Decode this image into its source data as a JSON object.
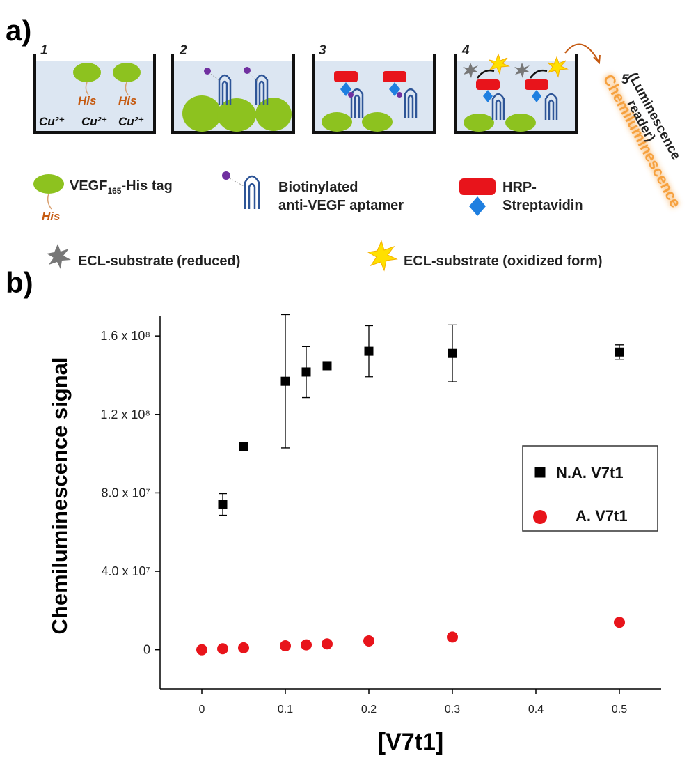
{
  "panel_a": {
    "label": "a)",
    "steps": [
      "1",
      "2",
      "3",
      "4",
      "5"
    ],
    "well_1": {
      "his": [
        "His",
        "His"
      ],
      "copper": [
        "Cu²⁺",
        "Cu²⁺",
        "Cu²⁺"
      ]
    },
    "reader": [
      "Chemiluminescence",
      "(Luminescence",
      "reader)"
    ],
    "legend": {
      "vegf": [
        "VEGF",
        "165",
        "-His tag"
      ],
      "vegf_tag": "His",
      "aptamer": [
        "Biotinylated",
        "anti-VEGF aptamer"
      ],
      "hrp": [
        "HRP-",
        "Streptavidin"
      ],
      "ecl_reduced": "ECL-substrate (reduced)",
      "ecl_oxidized": "ECL-substrate (oxidized form)"
    }
  },
  "panel_b_label": "b)",
  "chart_data": {
    "type": "scatter",
    "x_label": "[V7t1]",
    "y_label": "Chemiluminescence signal",
    "x": [
      0,
      0.025,
      0.05,
      0.1,
      0.125,
      0.15,
      0.2,
      0.3,
      0.5
    ],
    "series": [
      {
        "name": "N.A. V7t1",
        "color": "#000000",
        "marker": "square",
        "values": [
          null,
          74100000,
          103600000,
          136900000,
          141600000,
          144800000,
          152200000,
          151100000,
          151800000
        ],
        "errors": [
          null,
          5500000,
          null,
          34000000,
          13000000,
          null,
          13000000,
          14500000,
          3700000
        ]
      },
      {
        "name": "A. V7t1",
        "color": "#e8141b",
        "marker": "circle",
        "values": [
          0,
          500000,
          1000000,
          2000000,
          2500000,
          3000000,
          4500000,
          6500000,
          14000000
        ]
      }
    ],
    "xlim": [
      -0.05,
      0.55
    ],
    "ylim": [
      -20000000,
      170000000
    ],
    "xticks": [
      0,
      0.1,
      0.2,
      0.3,
      0.4,
      0.5
    ],
    "yticks": [
      0,
      {
        "value": 40000000,
        "label": "4.0 x 10⁷"
      },
      {
        "value": 80000000,
        "label": "8.0 x 10⁷"
      },
      {
        "value": 120000000,
        "label": "1.2 x 10⁸"
      },
      {
        "value": 160000000,
        "label": "1.6 x 10⁸"
      }
    ],
    "grid": false,
    "legend": "center right"
  }
}
